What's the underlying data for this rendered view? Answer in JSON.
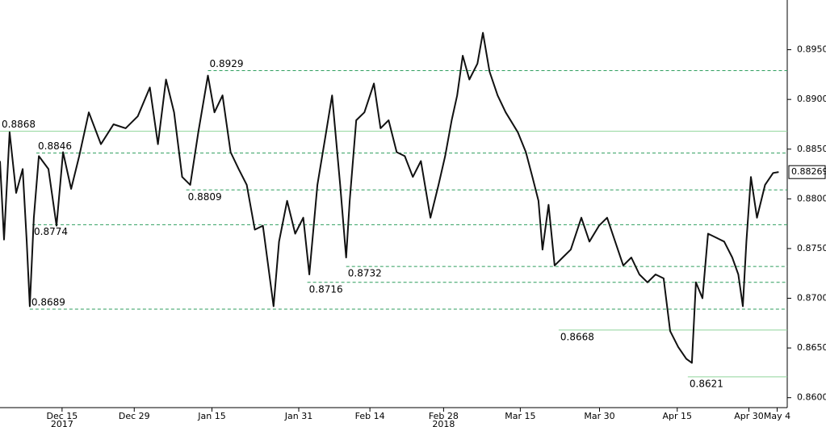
{
  "chart_data": {
    "type": "line",
    "x": [
      1.5,
      2.3,
      3.4,
      4.7,
      6.0,
      6.8,
      7.4,
      8.2,
      9.2,
      11.1,
      12.7,
      14.0,
      15.6,
      17.2,
      19.1,
      21.5,
      24.0,
      26.4,
      28.8,
      31.2,
      32.8,
      34.4,
      36.0,
      37.6,
      39.2,
      40.8,
      42.7,
      44.0,
      45.6,
      47.2,
      48.8,
      50.4,
      52.0,
      53.6,
      55.7,
      56.8,
      58.4,
      60.0,
      61.6,
      62.8,
      64.4,
      66.0,
      67.3,
      68.9,
      70.1,
      70.8,
      72.1,
      73.7,
      75.6,
      76.9,
      78.5,
      80.1,
      81.7,
      83.3,
      84.9,
      86.8,
      88.4,
      89.7,
      91.0,
      92.1,
      93.2,
      94.5,
      96.1,
      97.2,
      98.5,
      100.1,
      101.7,
      104.1,
      105.7,
      107.0,
      108.2,
      109.0,
      110.2,
      111.4,
      113.0,
      114.6,
      116.7,
      118.3,
      120.2,
      121.8,
      123.4,
      125.0,
      126.6,
      128.2,
      129.8,
      131.4,
      133.0,
      134.3,
      135.9,
      137.5,
      138.6,
      139.4,
      140.7,
      141.8,
      143.4,
      145.0,
      146.6,
      147.8,
      148.7,
      149.4,
      150.3,
      151.5,
      153.1,
      154.7,
      155.8
    ],
    "series": [
      {
        "color": "#111111",
        "values": [
          0.8838,
          0.8759,
          0.8867,
          0.8806,
          0.883,
          0.8757,
          0.8692,
          0.8781,
          0.8843,
          0.883,
          0.8773,
          0.8847,
          0.881,
          0.8843,
          0.8887,
          0.8855,
          0.8875,
          0.8871,
          0.8883,
          0.8912,
          0.8855,
          0.892,
          0.8887,
          0.8822,
          0.8814,
          0.8867,
          0.8924,
          0.8887,
          0.8904,
          0.8847,
          0.883,
          0.8814,
          0.8769,
          0.8773,
          0.8692,
          0.8757,
          0.8798,
          0.8765,
          0.8781,
          0.8724,
          0.8814,
          0.8863,
          0.8904,
          0.8814,
          0.8741,
          0.8798,
          0.8879,
          0.8887,
          0.8916,
          0.8871,
          0.8879,
          0.8847,
          0.8843,
          0.8822,
          0.8838,
          0.8781,
          0.8814,
          0.8843,
          0.8879,
          0.8904,
          0.8944,
          0.892,
          0.8936,
          0.8967,
          0.8928,
          0.8904,
          0.8887,
          0.8867,
          0.8847,
          0.8822,
          0.8798,
          0.8749,
          0.8794,
          0.8733,
          0.8741,
          0.8749,
          0.8781,
          0.8757,
          0.8773,
          0.8781,
          0.8757,
          0.8733,
          0.8741,
          0.8724,
          0.8716,
          0.8724,
          0.872,
          0.8667,
          0.8651,
          0.8639,
          0.8635,
          0.8716,
          0.87,
          0.8765,
          0.8761,
          0.8757,
          0.8741,
          0.8724,
          0.8692,
          0.8757,
          0.8822,
          0.8781,
          0.8814,
          0.8826,
          0.8827
        ]
      }
    ],
    "xlim": [
      1.5,
      157.5
    ],
    "xticks": [
      {
        "value": 13.8,
        "label": "Dec 15"
      },
      {
        "value": 28.1,
        "label": "Dec 29"
      },
      {
        "value": 43.5,
        "label": "Jan 15"
      },
      {
        "value": 60.7,
        "label": "Jan 31"
      },
      {
        "value": 74.8,
        "label": "Feb 14"
      },
      {
        "value": 89.4,
        "label": "Feb 28"
      },
      {
        "value": 104.6,
        "label": "Mar 15"
      },
      {
        "value": 120.3,
        "label": "Mar 30"
      },
      {
        "value": 135.7,
        "label": "Apr 15"
      },
      {
        "value": 149.9,
        "label": "Apr 30"
      },
      {
        "value": 155.5,
        "label": "May 4"
      }
    ],
    "year_ticks": [
      {
        "value": 13.8,
        "label": "2017"
      },
      {
        "value": 89.4,
        "label": "2018"
      }
    ],
    "ylim": [
      0.859,
      0.9
    ],
    "yticks": [
      {
        "value": 0.86,
        "label": "0.86000"
      },
      {
        "value": 0.865,
        "label": "0.86500"
      },
      {
        "value": 0.87,
        "label": "0.87000"
      },
      {
        "value": 0.875,
        "label": "0.87500"
      },
      {
        "value": 0.88,
        "label": "0.88000"
      },
      {
        "value": 0.885,
        "label": "0.88500"
      },
      {
        "value": 0.89,
        "label": "0.89000"
      },
      {
        "value": 0.895,
        "label": "0.89500"
      }
    ],
    "last_price": {
      "value": 0.88269,
      "label": "0.88269"
    },
    "levels": [
      {
        "value": 0.8929,
        "label": "0.8929",
        "style": "dashed",
        "x": 42.7
      },
      {
        "value": 0.8868,
        "label": "0.8868",
        "style": "solid",
        "x": 1.5
      },
      {
        "value": 0.8846,
        "label": "0.8846",
        "style": "dashed",
        "x": 8.7
      },
      {
        "value": 0.8809,
        "label": "0.8809",
        "style": "dashed",
        "x": 38.4
      },
      {
        "value": 0.8774,
        "label": "0.8774",
        "style": "dashed",
        "x": 7.9
      },
      {
        "value": 0.8732,
        "label": "0.8732",
        "style": "dashed",
        "x": 70.1
      },
      {
        "value": 0.8716,
        "label": "0.8716",
        "style": "dashed",
        "x": 62.4
      },
      {
        "value": 0.8689,
        "label": "0.8689",
        "style": "dashed",
        "x": 7.4
      },
      {
        "value": 0.8668,
        "label": "0.8668",
        "style": "solid",
        "x": 112.2
      },
      {
        "value": 0.8621,
        "label": "0.8621",
        "style": "solid",
        "x": 137.8
      }
    ],
    "level_color": "#2e9e5e"
  }
}
